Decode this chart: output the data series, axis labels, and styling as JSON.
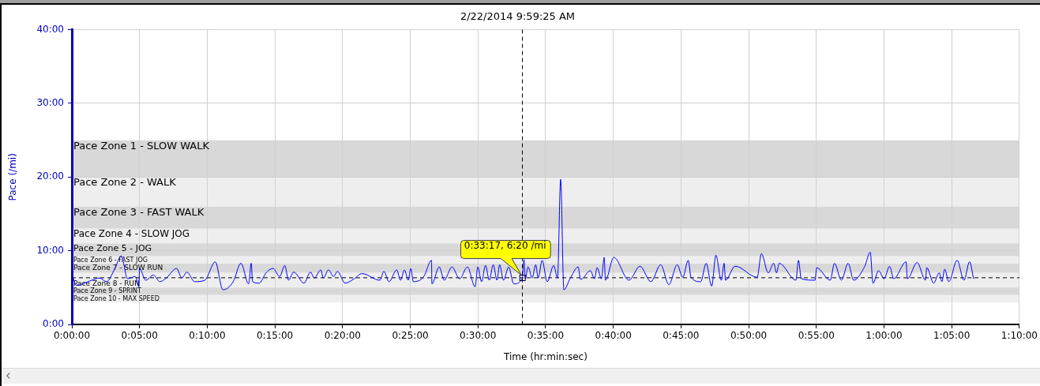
{
  "chart_data": {
    "type": "line",
    "title": "2/22/2014 9:59:25 AM",
    "xlabel": "Time (hr:min:sec)",
    "ylabel": "Pace (/mi)",
    "series": [
      {
        "color": "#0000ff",
        "x": [
          0.1,
          0.33,
          1.47,
          2.04,
          2.57,
          3.18,
          3.65,
          4.12,
          4.69,
          4.95,
          5.0,
          5.46,
          6.03,
          6.5,
          6.98,
          7.74,
          8.12,
          8.5,
          9.07,
          9.83,
          10.59,
          11.16,
          11.92,
          12.49,
          13.06,
          13.25,
          13.35,
          13.82,
          14.39,
          14.87,
          15.35,
          15.73,
          16.01,
          16.39,
          17.15,
          17.63,
          17.91,
          18.39,
          18.58,
          18.96,
          19.34,
          19.62,
          20.19,
          20.86,
          21.43,
          22.76,
          23.05,
          23.43,
          24.0,
          24.28,
          24.57,
          24.85,
          25.04,
          25.23,
          26.0,
          26.57,
          26.6,
          27.14,
          27.51,
          28.08,
          28.65,
          29.22,
          29.79,
          29.99,
          30.27,
          30.56,
          30.84,
          31.13,
          31.41,
          31.6,
          31.89,
          32.27,
          32.65,
          33.28,
          33.4,
          33.5,
          33.7,
          34.01,
          34.27,
          34.45,
          34.74,
          35.12,
          35.6,
          35.88,
          36.11,
          36.35,
          36.83,
          37.4,
          37.59,
          38.31,
          38.61,
          38.81,
          39.12,
          39.33,
          39.42,
          40.04,
          41.16,
          41.97,
          42.78,
          43.5,
          44.11,
          44.72,
          45.13,
          45.54,
          45.74,
          46.46,
          46.86,
          47.27,
          47.58,
          47.98,
          48.19,
          48.29,
          49.0,
          50.63,
          50.94,
          51.45,
          51.85,
          52.06,
          52.26,
          53.49,
          53.68,
          53.89,
          54.91,
          55.02,
          56.03,
          56.34,
          56.85,
          57.35,
          57.76,
          58.58,
          58.98,
          59.19,
          59.6,
          60.01,
          60.41,
          60.72,
          61.63,
          61.73,
          62.45,
          63.06,
          63.16,
          63.67,
          64.08,
          64.28,
          64.48,
          64.79,
          65.4,
          65.91,
          66.32,
          66.62
        ],
        "values": [
          6.3,
          5.3,
          6.0,
          6.3,
          5.8,
          7.6,
          9.3,
          6.2,
          6.5,
          5.1,
          7.6,
          6.0,
          6.7,
          5.8,
          6.3,
          7.6,
          6.3,
          7.1,
          5.8,
          6.0,
          8.5,
          4.7,
          5.8,
          8.3,
          5.5,
          8.3,
          5.8,
          5.6,
          7.1,
          7.6,
          6.5,
          8.0,
          6.0,
          7.1,
          5.6,
          7.1,
          6.3,
          7.4,
          6.3,
          7.4,
          6.5,
          7.2,
          5.6,
          6.2,
          6.9,
          6.0,
          7.2,
          5.8,
          7.4,
          6.0,
          7.4,
          6.0,
          7.6,
          5.8,
          6.5,
          8.7,
          5.5,
          7.8,
          6.0,
          7.8,
          6.2,
          7.8,
          5.1,
          7.8,
          5.8,
          8.0,
          6.0,
          8.1,
          6.0,
          8.1,
          6.0,
          7.8,
          5.5,
          6.3,
          8.8,
          6.2,
          7.8,
          6.3,
          8.1,
          6.3,
          8.7,
          5.8,
          8.0,
          6.3,
          19.7,
          4.7,
          6.3,
          7.8,
          6.1,
          7.3,
          6.2,
          7.7,
          6.2,
          9.1,
          6.0,
          9.1,
          6.0,
          7.9,
          5.8,
          8.1,
          5.4,
          8.1,
          6.4,
          8.7,
          6.4,
          5.8,
          8.3,
          5.2,
          9.4,
          6.0,
          8.3,
          6.0,
          7.9,
          6.4,
          9.6,
          7.0,
          8.3,
          7.0,
          8.3,
          6.0,
          8.7,
          6.2,
          6.0,
          7.7,
          6.0,
          8.3,
          6.0,
          8.3,
          6.0,
          7.9,
          9.8,
          5.6,
          7.3,
          6.2,
          7.9,
          6.2,
          8.5,
          6.2,
          8.4,
          6.0,
          7.7,
          5.6,
          7.0,
          5.8,
          7.5,
          5.8,
          8.7,
          6.0,
          8.5,
          6.2
        ]
      }
    ],
    "xlim": [
      0,
      70
    ],
    "xticks": [
      {
        "value": 0,
        "label": "0:00:00"
      },
      {
        "value": 5,
        "label": "0:05:00"
      },
      {
        "value": 10,
        "label": "0:10:00"
      },
      {
        "value": 15,
        "label": "0:15:00"
      },
      {
        "value": 20,
        "label": "0:20:00"
      },
      {
        "value": 25,
        "label": "0:25:00"
      },
      {
        "value": 30,
        "label": "0:30:00"
      },
      {
        "value": 35,
        "label": "0:35:00"
      },
      {
        "value": 40,
        "label": "0:40:00"
      },
      {
        "value": 45,
        "label": "0:45:00"
      },
      {
        "value": 50,
        "label": "0:50:00"
      },
      {
        "value": 55,
        "label": "0:55:00"
      },
      {
        "value": 60,
        "label": "1:00:00"
      },
      {
        "value": 65,
        "label": "1:05:00"
      },
      {
        "value": 70,
        "label": "1:10:00"
      }
    ],
    "ylim": [
      0,
      40
    ],
    "yticks": [
      {
        "value": 0,
        "label": "0:00"
      },
      {
        "value": 10,
        "label": "10:00"
      },
      {
        "value": 20,
        "label": "20:00"
      },
      {
        "value": 30,
        "label": "30:00"
      },
      {
        "value": 40,
        "label": "40:00"
      }
    ],
    "grid": true,
    "bands": [
      {
        "axis": "y",
        "from": 20,
        "to": 25,
        "label": "Pace Zone 1 - SLOW WALK",
        "color": "#d8d8d8"
      },
      {
        "axis": "y",
        "from": 16,
        "to": 20,
        "label": "Pace Zone 2 - WALK",
        "color": "#eeeeee"
      },
      {
        "axis": "y",
        "from": 13,
        "to": 16,
        "label": "Pace Zone 3 - FAST WALK",
        "color": "#d8d8d8"
      },
      {
        "axis": "y",
        "from": 11,
        "to": 13,
        "label": "Pace Zone 4 - SLOW JOG",
        "color": "#eeeeee"
      },
      {
        "axis": "y",
        "from": 9.25,
        "to": 11,
        "label": "Pace Zone 5 - JOG",
        "color": "#d8d8d8"
      },
      {
        "axis": "y",
        "from": 8.25,
        "to": 9.25,
        "label": "Pace Zone 6 - FAST JOG",
        "color": "#eeeeee"
      },
      {
        "axis": "y",
        "from": 7,
        "to": 8.25,
        "label": "Pace Zone 7 - SLOW RUN",
        "color": "#d8d8d8"
      },
      {
        "axis": "y",
        "from": 5,
        "to": 7,
        "label": "Pace Zone 8 - RUN",
        "color": "#eeeeee"
      },
      {
        "axis": "y",
        "from": 4,
        "to": 5,
        "label": "Pace Zone 9 - SPRINT",
        "color": "#d8d8d8"
      },
      {
        "axis": "y",
        "from": 3,
        "to": 4,
        "label": "Pace Zone 10 - MAX SPEED",
        "color": "#eeeeee"
      }
    ],
    "ref_lines": [
      {
        "axis": "x",
        "value": 33.283,
        "color": "#000000",
        "line_style": "dashed"
      },
      {
        "axis": "y",
        "value": 6.333,
        "color": "#000000",
        "line_style": "dashed"
      }
    ],
    "annotations": [
      {
        "text": "0:33:17, 6:20 /mi",
        "x": 33.283,
        "y": 6.333
      }
    ]
  }
}
